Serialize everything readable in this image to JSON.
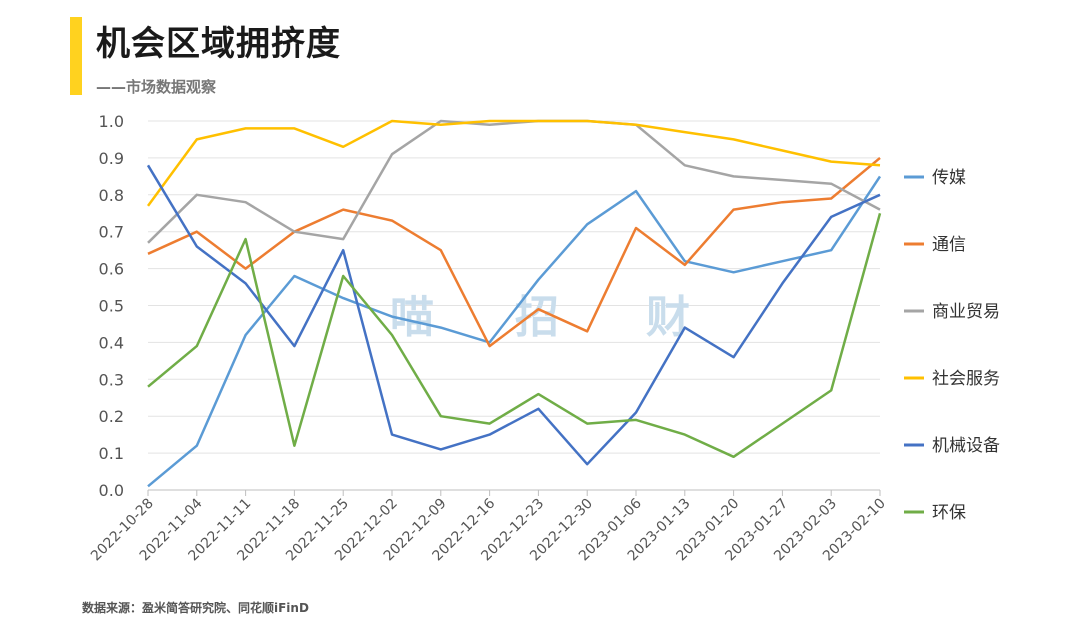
{
  "header": {
    "title": "机会区域拥挤度",
    "subtitle": "——市场数据观察",
    "accent_color": "#FFD21F"
  },
  "footer": {
    "source": "数据来源：盈米简答研究院、同花顺iFinD"
  },
  "watermark": [
    "喵",
    "招",
    "财"
  ],
  "chart_data": {
    "type": "line",
    "categories": [
      "2022-10-28",
      "2022-11-04",
      "2022-11-11",
      "2022-11-18",
      "2022-11-25",
      "2022-12-02",
      "2022-12-09",
      "2022-12-16",
      "2022-12-23",
      "2022-12-30",
      "2023-01-06",
      "2023-01-13",
      "2023-01-20",
      "2023-01-27",
      "2023-02-03",
      "2023-02-10"
    ],
    "ylim": [
      0,
      1
    ],
    "yticks": [
      "0.0",
      "0.1",
      "0.2",
      "0.3",
      "0.4",
      "0.5",
      "0.6",
      "0.7",
      "0.8",
      "0.9",
      "1.0"
    ],
    "grid": true,
    "legend_position": "right",
    "series": [
      {
        "name": "传媒",
        "color": "#5B9BD5",
        "values": [
          0.01,
          0.12,
          0.42,
          0.58,
          0.52,
          0.47,
          0.44,
          0.4,
          0.57,
          0.72,
          0.81,
          0.62,
          0.59,
          0.62,
          0.65,
          0.85
        ]
      },
      {
        "name": "通信",
        "color": "#ED7D31",
        "values": [
          0.64,
          0.7,
          0.6,
          0.7,
          0.76,
          0.73,
          0.65,
          0.39,
          0.49,
          0.43,
          0.71,
          0.61,
          0.76,
          0.78,
          0.79,
          0.9
        ]
      },
      {
        "name": "商业贸易",
        "color": "#A5A5A5",
        "values": [
          0.67,
          0.8,
          0.78,
          0.7,
          0.68,
          0.91,
          1.0,
          0.99,
          1.0,
          1.0,
          0.99,
          0.88,
          0.85,
          0.84,
          0.83,
          0.76
        ]
      },
      {
        "name": "社会服务",
        "color": "#FFC000",
        "values": [
          0.77,
          0.95,
          0.98,
          0.98,
          0.93,
          1.0,
          0.99,
          1.0,
          1.0,
          1.0,
          0.99,
          0.97,
          0.95,
          0.92,
          0.89,
          0.88
        ]
      },
      {
        "name": "机械设备",
        "color": "#4472C4",
        "values": [
          0.88,
          0.66,
          0.56,
          0.39,
          0.65,
          0.15,
          0.11,
          0.15,
          0.22,
          0.07,
          0.21,
          0.44,
          0.36,
          0.56,
          0.74,
          0.8
        ]
      },
      {
        "name": "环保",
        "color": "#70AD47",
        "values": [
          0.28,
          0.39,
          0.68,
          0.12,
          0.58,
          0.42,
          0.2,
          0.18,
          0.26,
          0.18,
          0.19,
          0.15,
          0.09,
          0.18,
          0.27,
          0.75
        ]
      }
    ]
  }
}
